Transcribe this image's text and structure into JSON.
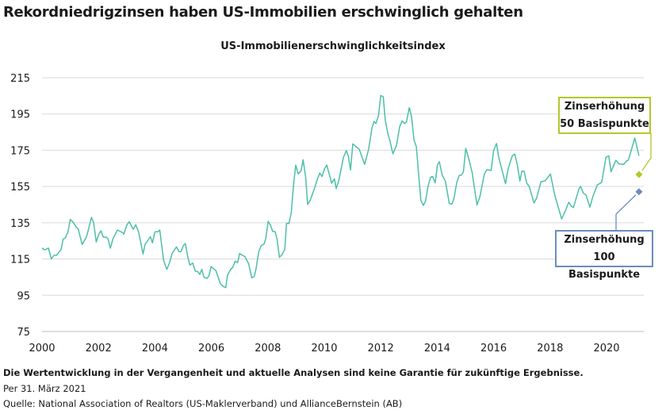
{
  "title": "Rekordniedrigzinsen haben US-Immobilien erschwinglich gehalten",
  "footer": {
    "disclaimer": "Die Wertentwicklung in der Vergangenheit und aktuelle Analysen sind keine Garantie für zukünftige Ergebnisse.",
    "date": "Per 31. März 2021",
    "source": "Quelle: National Association of Realtors (US-Maklerverband) und AllianceBernstein (AB)"
  },
  "colors": {
    "line": "#4dbfa8",
    "rate50": "#b5c72a",
    "rate100": "#6b8cc0",
    "grid": "#d9d9d9"
  },
  "chart_data": {
    "type": "line",
    "title": "US-Immobilienerschwinglichkeitsindex",
    "xlim": [
      2000,
      2021.6
    ],
    "ylim": [
      75,
      215
    ],
    "xticks": [
      "2000",
      "2002",
      "2004",
      "2006",
      "2008",
      "2010",
      "2012",
      "2014",
      "2016",
      "2018",
      "2020"
    ],
    "yticks": [
      "215",
      "195",
      "175",
      "155",
      "135",
      "115",
      "95",
      "75"
    ],
    "grid": "horizontal",
    "series": [
      {
        "points": [
          [
            2000.0,
            121.1
          ],
          [
            2000.09,
            120
          ],
          [
            2000.23,
            121
          ],
          [
            2000.33,
            115
          ],
          [
            2000.42,
            117
          ],
          [
            2000.51,
            117
          ],
          [
            2000.61,
            119
          ],
          [
            2000.67,
            120
          ],
          [
            2000.75,
            126
          ],
          [
            2000.82,
            126.5
          ],
          [
            2000.92,
            130
          ],
          [
            2001.0,
            136.8
          ],
          [
            2001.1,
            135.3
          ],
          [
            2001.22,
            132.4
          ],
          [
            2001.28,
            131.7
          ],
          [
            2001.42,
            123
          ],
          [
            2001.57,
            127
          ],
          [
            2001.64,
            131
          ],
          [
            2001.75,
            138
          ],
          [
            2001.83,
            135
          ],
          [
            2001.92,
            124.4
          ],
          [
            2002.01,
            128.7
          ],
          [
            2002.09,
            130.5
          ],
          [
            2002.17,
            127
          ],
          [
            2002.28,
            127
          ],
          [
            2002.34,
            126
          ],
          [
            2002.42,
            121
          ],
          [
            2002.51,
            126
          ],
          [
            2002.67,
            131
          ],
          [
            2002.86,
            129.5
          ],
          [
            2002.9,
            128.7
          ],
          [
            2003.0,
            133.6
          ],
          [
            2003.09,
            135.6
          ],
          [
            2003.23,
            131.4
          ],
          [
            2003.32,
            133.9
          ],
          [
            2003.42,
            130
          ],
          [
            2003.58,
            117.8
          ],
          [
            2003.65,
            123
          ],
          [
            2003.84,
            127.3
          ],
          [
            2003.91,
            123.9
          ],
          [
            2004.0,
            130
          ],
          [
            2004.1,
            130
          ],
          [
            2004.17,
            131
          ],
          [
            2004.31,
            114.1
          ],
          [
            2004.42,
            109.3
          ],
          [
            2004.52,
            113
          ],
          [
            2004.61,
            118
          ],
          [
            2004.76,
            121.7
          ],
          [
            2004.85,
            119
          ],
          [
            2004.92,
            119
          ],
          [
            2005.01,
            122.5
          ],
          [
            2005.08,
            123.5
          ],
          [
            2005.17,
            115.6
          ],
          [
            2005.24,
            111.6
          ],
          [
            2005.34,
            112.7
          ],
          [
            2005.43,
            108.3
          ],
          [
            2005.52,
            108
          ],
          [
            2005.59,
            106.5
          ],
          [
            2005.66,
            109.3
          ],
          [
            2005.74,
            104.9
          ],
          [
            2005.85,
            104.3
          ],
          [
            2005.92,
            106
          ],
          [
            2005.99,
            110.8
          ],
          [
            2006.16,
            108.6
          ],
          [
            2006.32,
            101.3
          ],
          [
            2006.43,
            99.8
          ],
          [
            2006.51,
            99.2
          ],
          [
            2006.57,
            106
          ],
          [
            2006.67,
            109
          ],
          [
            2006.76,
            110.5
          ],
          [
            2006.84,
            113.8
          ],
          [
            2006.93,
            113
          ],
          [
            2007.0,
            118
          ],
          [
            2007.13,
            116.8
          ],
          [
            2007.19,
            116.3
          ],
          [
            2007.32,
            112.4
          ],
          [
            2007.43,
            104.6
          ],
          [
            2007.52,
            105.4
          ],
          [
            2007.58,
            109.3
          ],
          [
            2007.68,
            119.2
          ],
          [
            2007.77,
            122.5
          ],
          [
            2007.87,
            123.3
          ],
          [
            2007.93,
            126.5
          ],
          [
            2008.01,
            135.8
          ],
          [
            2008.1,
            133.4
          ],
          [
            2008.17,
            130.2
          ],
          [
            2008.26,
            130
          ],
          [
            2008.33,
            125.8
          ],
          [
            2008.41,
            115.9
          ],
          [
            2008.5,
            117.3
          ],
          [
            2008.6,
            120.3
          ],
          [
            2008.66,
            134.6
          ],
          [
            2008.75,
            134.6
          ],
          [
            2008.83,
            140.4
          ],
          [
            2008.91,
            155.8
          ],
          [
            2008.99,
            166.8
          ],
          [
            2009.08,
            161.9
          ],
          [
            2009.18,
            163.8
          ],
          [
            2009.25,
            169.7
          ],
          [
            2009.34,
            160.2
          ],
          [
            2009.41,
            145.1
          ],
          [
            2009.5,
            147.3
          ],
          [
            2009.66,
            154.3
          ],
          [
            2009.75,
            158.7
          ],
          [
            2009.84,
            162.4
          ],
          [
            2009.92,
            160.5
          ],
          [
            2010.01,
            164.9
          ],
          [
            2010.09,
            166.8
          ],
          [
            2010.26,
            156.8
          ],
          [
            2010.36,
            159.2
          ],
          [
            2010.42,
            153.9
          ],
          [
            2010.51,
            158
          ],
          [
            2010.68,
            171.1
          ],
          [
            2010.78,
            174.8
          ],
          [
            2010.85,
            171.9
          ],
          [
            2010.93,
            164.1
          ],
          [
            2011.01,
            178.5
          ],
          [
            2011.13,
            177
          ],
          [
            2011.24,
            175.5
          ],
          [
            2011.43,
            167.2
          ],
          [
            2011.57,
            175.5
          ],
          [
            2011.69,
            187.2
          ],
          [
            2011.76,
            190.9
          ],
          [
            2011.83,
            189.7
          ],
          [
            2011.92,
            194.1
          ],
          [
            2012.0,
            205.2
          ],
          [
            2012.09,
            204.5
          ],
          [
            2012.16,
            191.6
          ],
          [
            2012.26,
            183.6
          ],
          [
            2012.32,
            180.6
          ],
          [
            2012.43,
            173
          ],
          [
            2012.56,
            177.7
          ],
          [
            2012.67,
            188
          ],
          [
            2012.76,
            191.2
          ],
          [
            2012.84,
            189.7
          ],
          [
            2012.91,
            190.6
          ],
          [
            2013.01,
            198.5
          ],
          [
            2013.09,
            193.8
          ],
          [
            2013.18,
            180.6
          ],
          [
            2013.26,
            177
          ],
          [
            2013.35,
            160.2
          ],
          [
            2013.42,
            147.3
          ],
          [
            2013.51,
            144.5
          ],
          [
            2013.59,
            147
          ],
          [
            2013.68,
            155.5
          ],
          [
            2013.77,
            160.2
          ],
          [
            2013.84,
            160.5
          ],
          [
            2013.93,
            157
          ],
          [
            2014.01,
            167.1
          ],
          [
            2014.08,
            168.6
          ],
          [
            2014.18,
            161.2
          ],
          [
            2014.29,
            158
          ],
          [
            2014.43,
            145.6
          ],
          [
            2014.52,
            145.3
          ],
          [
            2014.59,
            148
          ],
          [
            2014.69,
            157
          ],
          [
            2014.78,
            161.2
          ],
          [
            2014.85,
            161.2
          ],
          [
            2014.93,
            163.1
          ],
          [
            2015.01,
            176
          ],
          [
            2015.1,
            171.4
          ],
          [
            2015.24,
            162.7
          ],
          [
            2015.41,
            144.8
          ],
          [
            2015.51,
            149.2
          ],
          [
            2015.67,
            161.9
          ],
          [
            2015.76,
            164.3
          ],
          [
            2015.91,
            163.8
          ],
          [
            2016.0,
            174.8
          ],
          [
            2016.1,
            178.7
          ],
          [
            2016.18,
            171.1
          ],
          [
            2016.3,
            163.8
          ],
          [
            2016.42,
            156.5
          ],
          [
            2016.51,
            164.6
          ],
          [
            2016.66,
            171.9
          ],
          [
            2016.75,
            172.9
          ],
          [
            2016.84,
            166.8
          ],
          [
            2016.93,
            158
          ],
          [
            2017.0,
            163.4
          ],
          [
            2017.08,
            163.4
          ],
          [
            2017.17,
            156.8
          ],
          [
            2017.26,
            155
          ],
          [
            2017.43,
            145.9
          ],
          [
            2017.52,
            148.4
          ],
          [
            2017.68,
            157.7
          ],
          [
            2017.8,
            158
          ],
          [
            2017.87,
            159
          ],
          [
            2018.01,
            161.9
          ],
          [
            2018.17,
            149.9
          ],
          [
            2018.41,
            137.1
          ],
          [
            2018.55,
            141.9
          ],
          [
            2018.66,
            146.3
          ],
          [
            2018.75,
            144.1
          ],
          [
            2018.83,
            143.4
          ],
          [
            2019.02,
            153.6
          ],
          [
            2019.08,
            155
          ],
          [
            2019.18,
            151.3
          ],
          [
            2019.27,
            150.4
          ],
          [
            2019.41,
            143.6
          ],
          [
            2019.51,
            149.2
          ],
          [
            2019.67,
            155.8
          ],
          [
            2019.83,
            157.3
          ],
          [
            2019.98,
            171.1
          ],
          [
            2020.08,
            171.9
          ],
          [
            2020.16,
            163.1
          ],
          [
            2020.33,
            169.4
          ],
          [
            2020.44,
            167.5
          ],
          [
            2020.61,
            167.2
          ],
          [
            2020.7,
            169
          ],
          [
            2020.77,
            169.4
          ],
          [
            2020.86,
            174.1
          ],
          [
            2021.0,
            181.7
          ],
          [
            2021.15,
            171.9
          ]
        ]
      }
    ],
    "annotations": [
      {
        "line1": "Zinserhöhung",
        "line2": "50 Basispunkte",
        "x": 2021.15,
        "y": 161.6,
        "color": "#b5c72a"
      },
      {
        "line1": "Zinserhöhung",
        "line2": "100 Basispunkte",
        "x": 2021.15,
        "y": 152.1,
        "color": "#6b8cc0"
      }
    ]
  }
}
